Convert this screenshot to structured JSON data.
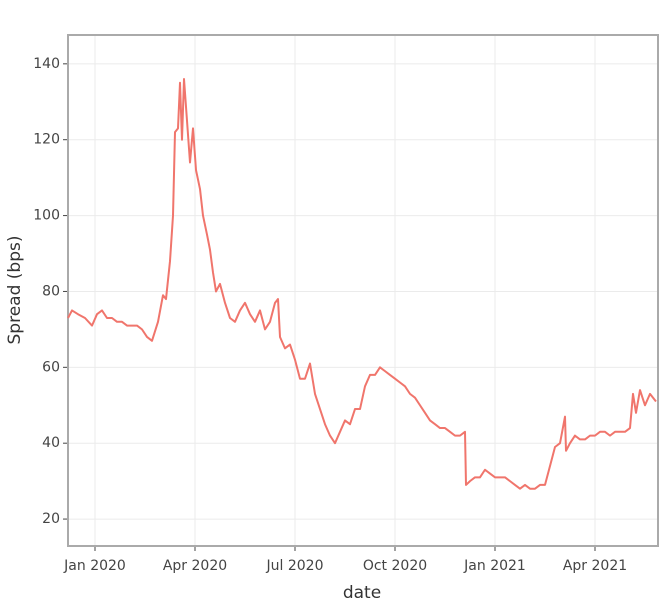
{
  "chart_data": {
    "type": "line",
    "x_label": "date",
    "y_label": "Spread (bps)",
    "x": [
      2019.9325,
      2019.9425,
      2019.9575,
      2019.975,
      2019.9925,
      2020.005,
      2020.0175,
      2020.03,
      2020.0425,
      2020.055,
      2020.0675,
      2020.08,
      2020.0925,
      2020.105,
      2020.1175,
      2020.13,
      2020.1425,
      2020.1575,
      2020.17,
      2020.1775,
      2020.1875,
      2020.195,
      2020.2,
      2020.2075,
      2020.2125,
      2020.2175,
      2020.2225,
      2020.23,
      2020.2375,
      2020.245,
      2020.2525,
      2020.2625,
      2020.27,
      2020.28,
      2020.2875,
      2020.295,
      2020.3025,
      2020.3125,
      2020.325,
      2020.3375,
      2020.35,
      2020.3625,
      2020.375,
      2020.3875,
      2020.4,
      2020.4125,
      2020.425,
      2020.4375,
      2020.45,
      2020.4575,
      2020.4625,
      2020.475,
      2020.4875,
      2020.5,
      2020.5125,
      2020.525,
      2020.5375,
      2020.55,
      2020.5625,
      2020.575,
      2020.5875,
      2020.6,
      2020.6125,
      2020.625,
      2020.6375,
      2020.65,
      2020.6625,
      2020.675,
      2020.6875,
      2020.7,
      2020.7125,
      2020.725,
      2020.7375,
      2020.75,
      2020.7625,
      2020.775,
      2020.7875,
      2020.8,
      2020.8125,
      2020.825,
      2020.8375,
      2020.85,
      2020.8625,
      2020.875,
      2020.8875,
      2020.9,
      2020.9125,
      2020.925,
      2020.9275,
      2020.9375,
      2020.95,
      2020.9625,
      2020.975,
      2020.9875,
      2021.0,
      2021.0125,
      2021.025,
      2021.0375,
      2021.05,
      2021.0625,
      2021.075,
      2021.0875,
      2021.1,
      2021.1125,
      2021.125,
      2021.1375,
      2021.15,
      2021.1625,
      2021.175,
      2021.1775,
      2021.1875,
      2021.2,
      2021.2125,
      2021.225,
      2021.2375,
      2021.25,
      2021.2625,
      2021.275,
      2021.2875,
      2021.3,
      2021.3125,
      2021.325,
      2021.3375,
      2021.345,
      2021.3525,
      2021.3625,
      2021.375,
      2021.3875,
      2021.4025
    ],
    "series": [
      {
        "color": "#f0756c",
        "values": [
          73,
          75,
          74,
          73,
          71,
          74,
          75,
          73,
          73,
          72,
          72,
          71,
          71,
          71,
          70,
          68,
          67,
          72,
          79,
          78,
          88,
          100,
          122,
          123,
          135,
          120,
          136,
          125,
          114,
          123,
          112,
          107,
          100,
          95,
          91,
          85,
          80,
          82,
          77,
          73,
          72,
          75,
          77,
          74,
          72,
          75,
          70,
          72,
          77,
          78,
          68,
          65,
          66,
          62,
          57,
          57,
          61,
          53,
          49,
          45,
          42,
          40,
          43,
          46,
          45,
          49,
          49,
          55,
          58,
          58,
          60,
          59,
          58,
          57,
          56,
          55,
          53,
          52,
          50,
          48,
          46,
          45,
          44,
          44,
          43,
          42,
          42,
          43,
          29,
          30,
          31,
          31,
          33,
          32,
          31,
          31,
          31,
          30,
          29,
          28,
          29,
          28,
          28,
          29,
          29,
          34,
          39,
          40,
          47,
          38,
          40,
          42,
          41,
          41,
          42,
          42,
          43,
          43,
          42,
          43,
          43,
          43,
          44,
          53,
          48,
          54,
          50,
          53,
          51
        ]
      }
    ],
    "xlim": [
      2019.9325,
      2021.4075
    ],
    "xticks": [
      {
        "value": 2020,
        "label": "Jan 2020"
      },
      {
        "value": 2020.25,
        "label": "Apr 2020"
      },
      {
        "value": 2020.5,
        "label": "Jul 2020"
      },
      {
        "value": 2020.75,
        "label": "Oct 2020"
      },
      {
        "value": 2021,
        "label": "Jan 2021"
      },
      {
        "value": 2021.25,
        "label": "Apr 2021"
      }
    ],
    "ylim": [
      12.9,
      147.6
    ],
    "yticks": [
      20,
      40,
      60,
      80,
      100,
      120,
      140
    ],
    "grid": true
  }
}
